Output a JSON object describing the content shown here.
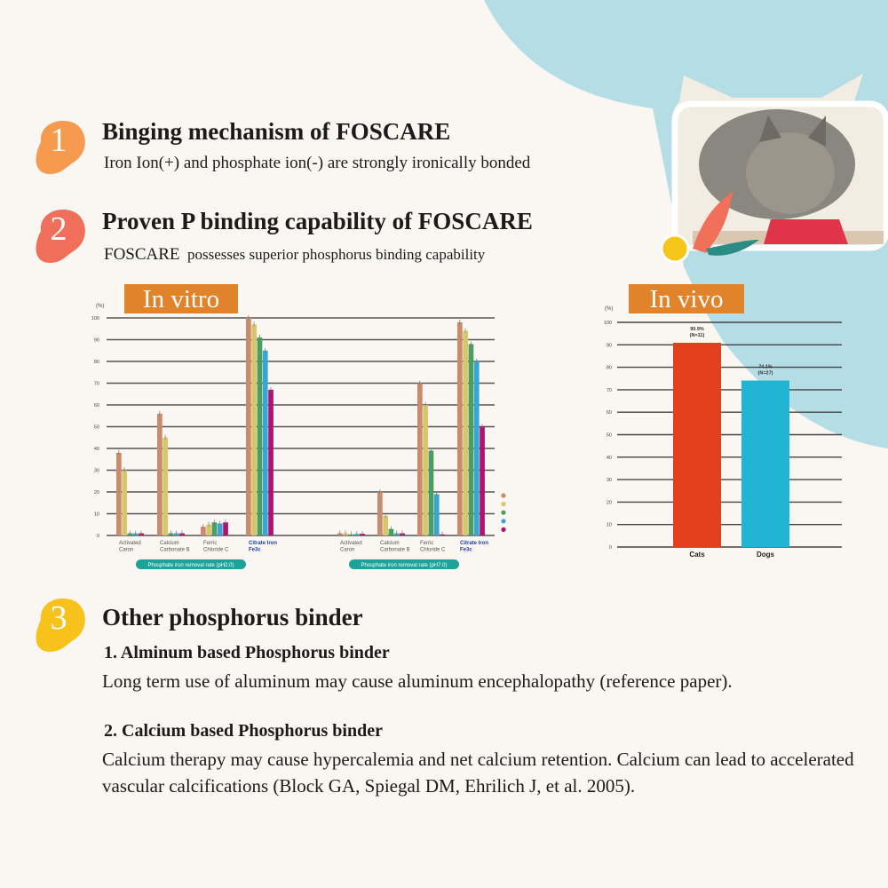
{
  "sections": [
    {
      "number": "1",
      "title": "Binging mechanism of FOSCARE",
      "subtitle": "Iron Ion(+) and phosphate ion(-) are strongly ironically bonded",
      "color": "#f59a4e"
    },
    {
      "number": "2",
      "title": "Proven P binding capability of FOSCARE",
      "subtitle_brand": "FOSCARE",
      "subtitle": "possesses superior phosphorus binding capability",
      "color": "#f06f5a"
    },
    {
      "number": "3",
      "title": "Other phosphorus binder",
      "color": "#f7c21c",
      "items": [
        {
          "heading": "1. Alminum based Phosphorus binder",
          "text": "Long term use of aluminum may cause  aluminum encephalopathy (reference paper)."
        },
        {
          "heading": "2. Calcium based Phosphorus binder",
          "text": "Calcium therapy may cause hypercalemia and net calcium retention. Calcium can lead to accelerated vascular calcifications (Block GA, Spiegal DM, Ehrilich J, et al. 2005)."
        }
      ]
    }
  ],
  "image": {
    "icon": "cat-eating-photo"
  },
  "chart_data": [
    {
      "type": "bar",
      "title": "In vitro",
      "ylabel": "(%)",
      "ylim": [
        0,
        100
      ],
      "yticks": [
        "0",
        "10",
        "20",
        "30",
        "40",
        "50",
        "60",
        "70",
        "80",
        "90",
        "100"
      ],
      "grid": true,
      "legend": "right (unlabeled color dots)",
      "series_colors": [
        "#c98a6e",
        "#d8c76a",
        "#4a9e63",
        "#3aa5d5",
        "#b0136f"
      ],
      "panels": [
        {
          "caption": "Phosphate iron removal rate (pH2.0)",
          "categories": [
            [
              "Activated",
              "Caron"
            ],
            [
              "Calcium",
              "Carbonate B"
            ],
            [
              "Ferric",
              "Chloride C"
            ],
            [
              "Citrate Iron",
              "Fe3c"
            ]
          ],
          "values": [
            [
              38,
              30,
              1,
              1,
              1
            ],
            [
              56,
              45,
              1,
              1,
              1
            ],
            [
              4,
              5,
              6,
              5.5,
              6
            ],
            [
              100,
              97,
              91,
              85,
              67
            ]
          ]
        },
        {
          "caption": "Phosphate iron removal rate (pH7.0)",
          "categories": [
            [
              "Activated",
              "Caron"
            ],
            [
              "Calcium",
              "Carbonate B"
            ],
            [
              "Ferric",
              "Chloride C"
            ],
            [
              "Citrate Iron",
              "Fe3c"
            ]
          ],
          "values": [
            [
              1,
              1,
              0.5,
              0.7,
              0.8
            ],
            [
              20,
              9,
              3,
              1,
              1
            ],
            [
              70,
              60,
              39,
              19,
              0.5
            ],
            [
              98,
              94,
              88,
              80,
              50
            ]
          ]
        }
      ]
    },
    {
      "type": "bar",
      "title": "In vivo",
      "ylabel": "(%)",
      "ylim": [
        0,
        100
      ],
      "yticks": [
        "0",
        "10",
        "20",
        "30",
        "40",
        "50",
        "60",
        "70",
        "80",
        "90",
        "100"
      ],
      "grid": true,
      "categories": [
        "Cats",
        "Dogs"
      ],
      "values": [
        90.9,
        74.1
      ],
      "labels": [
        [
          "90.9%",
          "(N=11)"
        ],
        [
          "74.1%",
          "(N=27)"
        ]
      ],
      "colors": [
        "#e2401c",
        "#22b5d3"
      ]
    }
  ]
}
